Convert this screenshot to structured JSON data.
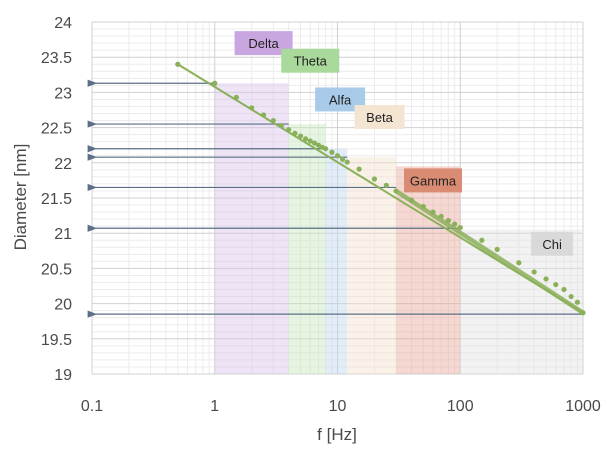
{
  "chart_data": {
    "type": "scatter",
    "title": "",
    "xlabel": "f [Hz]",
    "ylabel": "Diameter [nm]",
    "x_scale": "log",
    "xlim": [
      0.1,
      1000
    ],
    "ylim": [
      19,
      24
    ],
    "x_ticks": [
      "0.1",
      "1",
      "10",
      "100",
      "1000"
    ],
    "y_ticks": [
      "19",
      "19.5",
      "20",
      "20.5",
      "21",
      "21.5",
      "22",
      "22.5",
      "23",
      "23.5",
      "24"
    ],
    "grid": true,
    "bands": [
      {
        "name": "Delta",
        "x_range": [
          1,
          4
        ],
        "y_range": [
          19,
          23.13
        ],
        "color": "#d9c4ec",
        "label_color": "#c9a6df"
      },
      {
        "name": "Theta",
        "x_range": [
          4,
          8
        ],
        "y_range": [
          19,
          22.55
        ],
        "color": "#c6e8bd",
        "label_color": "#a9d99b"
      },
      {
        "name": "Alfa",
        "x_range": [
          8,
          12
        ],
        "y_range": [
          19,
          22.2
        ],
        "color": "#bfd8ef",
        "label_color": "#a9cbea"
      },
      {
        "name": "Beta",
        "x_range": [
          12,
          30
        ],
        "y_range": [
          19,
          22.08
        ],
        "color": "#f3e3cf",
        "label_color": "#f4e5d3"
      },
      {
        "name": "Gamma",
        "x_range": [
          30,
          100
        ],
        "y_range": [
          19,
          21.95
        ],
        "color": "#e8a898",
        "label_color": "#d98b73"
      },
      {
        "name": "Chi",
        "x_range": [
          100,
          1000
        ],
        "y_range": [
          19,
          21.05
        ],
        "color": "#e3e3e3",
        "label_color": "#d9d9d9"
      }
    ],
    "arrows": [
      {
        "from_x": 1,
        "to_x": 0.1,
        "y": 23.13
      },
      {
        "from_x": 4,
        "to_x": 0.1,
        "y": 22.55
      },
      {
        "from_x": 8,
        "to_x": 0.1,
        "y": 22.2
      },
      {
        "from_x": 12,
        "to_x": 0.1,
        "y": 22.08
      },
      {
        "from_x": 30,
        "to_x": 0.1,
        "y": 21.65
      },
      {
        "from_x": 100,
        "to_x": 0.1,
        "y": 21.07
      },
      {
        "from_x": 1000,
        "to_x": 0.1,
        "y": 19.85
      }
    ],
    "series": [
      {
        "color": "#8bb05a",
        "line": {
          "x": [
            0.5,
            1000
          ],
          "y": [
            23.4,
            19.87
          ]
        },
        "points": {
          "x": [
            0.5,
            1,
            1.5,
            2,
            2.5,
            3,
            3.5,
            4,
            4.5,
            5,
            5.5,
            6,
            6.5,
            7,
            7.5,
            8,
            9,
            10,
            11,
            12,
            15,
            20,
            25,
            30,
            40,
            50,
            60,
            70,
            80,
            90,
            100,
            150,
            200,
            300,
            400,
            500,
            600,
            700,
            800,
            900,
            1000
          ],
          "y": [
            23.4,
            23.13,
            22.93,
            22.78,
            22.68,
            22.6,
            22.53,
            22.47,
            22.42,
            22.38,
            22.34,
            22.31,
            22.28,
            22.25,
            22.22,
            22.2,
            22.15,
            22.1,
            22.05,
            22.01,
            21.91,
            21.77,
            21.68,
            21.6,
            21.47,
            21.38,
            21.3,
            21.24,
            21.18,
            21.13,
            21.08,
            20.9,
            20.77,
            20.58,
            20.45,
            20.35,
            20.27,
            20.2,
            20.1,
            20.02,
            19.87
          ]
        }
      }
    ]
  }
}
